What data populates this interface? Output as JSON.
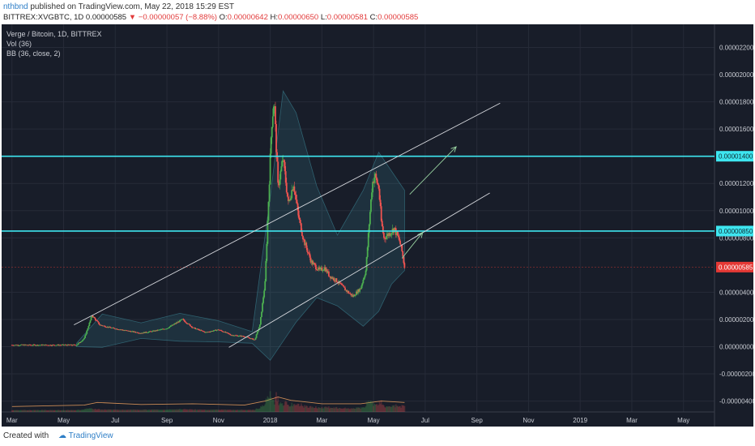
{
  "header": {
    "author": "nthbnd",
    "published_text": "published on TradingView.com, May 22, 2018 15:29 EST",
    "symbol": "BITTREX:XVGBTC, 1D",
    "last": "0.00000585",
    "change": "−0.00000057 (−8.88%)",
    "o_label": "O:",
    "o": "0.00000642",
    "h_label": "H:",
    "h": "0.00000650",
    "l_label": "L:",
    "l": "0.00000581",
    "c_label": "C:",
    "c": "0.00000585"
  },
  "legend": {
    "title": "Verge / Bitcoin, 1D, BITTREX",
    "vol": "Vol (36)",
    "bb": "BB (36, close, 2)"
  },
  "footer": {
    "created": "Created with",
    "brand": "TradingView"
  },
  "colors": {
    "background": "#181d29",
    "grid": "#262b38",
    "up": "#4caf50",
    "down": "#ef5350",
    "level": "#3ee6f0",
    "current": "#e53935",
    "trendline": "#d7d9de",
    "arrow": "#9ad4a2",
    "bb_band": "#3f8fa0",
    "volume_ma": "#c98a55"
  },
  "chart_data": {
    "type": "candlestick",
    "title": "Verge / Bitcoin, 1D, BITTREX",
    "price_axis": {
      "ticks": [
        "0.00002200",
        "0.00002000",
        "0.00001800",
        "0.00001600",
        "0.00001200",
        "0.00001000",
        "0.00000800",
        "0.00000400",
        "0.00000200",
        "0.00000000",
        "-0.00000200",
        "-0.00000400"
      ],
      "tick_values": [
        2200,
        2000,
        1800,
        1600,
        1200,
        1000,
        800,
        400,
        200,
        0,
        -200,
        -400
      ],
      "unit": "1e-8 BTC",
      "range": [
        -480,
        2370
      ]
    },
    "time_axis": {
      "labels": [
        "Mar",
        "May",
        "Jul",
        "Sep",
        "Nov",
        "2018",
        "Mar",
        "May",
        "Jul",
        "Sep",
        "Nov",
        "2019",
        "Mar",
        "May"
      ],
      "label_months": [
        0,
        2,
        4,
        6,
        8,
        10,
        12,
        14,
        16,
        18,
        20,
        22,
        24,
        26
      ],
      "origin": "Mar 2017",
      "range_months": [
        -0.4,
        27.2
      ]
    },
    "levels": [
      {
        "label": "0.00001400",
        "value": 1400
      },
      {
        "label": "0.00000850",
        "value": 850
      }
    ],
    "current_price": {
      "label": "0.00000585",
      "value": 585
    },
    "price_path": [
      [
        0.0,
        12
      ],
      [
        2.5,
        12
      ],
      [
        2.8,
        60
      ],
      [
        3.1,
        230
      ],
      [
        3.4,
        160
      ],
      [
        3.8,
        140
      ],
      [
        4.5,
        115
      ],
      [
        5.0,
        100
      ],
      [
        5.5,
        115
      ],
      [
        6.0,
        135
      ],
      [
        6.6,
        200
      ],
      [
        7.0,
        140
      ],
      [
        7.5,
        105
      ],
      [
        8.0,
        125
      ],
      [
        8.5,
        85
      ],
      [
        9.0,
        75
      ],
      [
        9.4,
        50
      ],
      [
        9.6,
        160
      ],
      [
        9.8,
        470
      ],
      [
        9.95,
        1150
      ],
      [
        10.05,
        1620
      ],
      [
        10.15,
        1820
      ],
      [
        10.3,
        1180
      ],
      [
        10.5,
        1380
      ],
      [
        10.7,
        1050
      ],
      [
        10.9,
        1200
      ],
      [
        11.1,
        950
      ],
      [
        11.3,
        780
      ],
      [
        11.6,
        620
      ],
      [
        11.9,
        560
      ],
      [
        12.1,
        580
      ],
      [
        12.3,
        520
      ],
      [
        12.6,
        480
      ],
      [
        12.9,
        420
      ],
      [
        13.2,
        370
      ],
      [
        13.5,
        430
      ],
      [
        13.7,
        560
      ],
      [
        13.85,
        950
      ],
      [
        13.95,
        1200
      ],
      [
        14.05,
        1260
      ],
      [
        14.2,
        1170
      ],
      [
        14.3,
        920
      ],
      [
        14.4,
        800
      ],
      [
        14.6,
        830
      ],
      [
        14.8,
        870
      ],
      [
        15.0,
        780
      ],
      [
        15.1,
        700
      ],
      [
        15.2,
        585
      ]
    ],
    "bollinger": {
      "upper": [
        [
          2.5,
          25
        ],
        [
          3.5,
          240
        ],
        [
          5.0,
          175
        ],
        [
          6.5,
          245
        ],
        [
          8.0,
          190
        ],
        [
          9.3,
          110
        ],
        [
          10.0,
          1100
        ],
        [
          10.5,
          1880
        ],
        [
          11.0,
          1720
        ],
        [
          11.8,
          1180
        ],
        [
          12.6,
          820
        ],
        [
          13.6,
          1150
        ],
        [
          14.2,
          1430
        ],
        [
          14.7,
          1290
        ],
        [
          15.2,
          1150
        ]
      ],
      "lower": [
        [
          2.5,
          0
        ],
        [
          3.5,
          -5
        ],
        [
          5.0,
          60
        ],
        [
          6.5,
          40
        ],
        [
          8.0,
          35
        ],
        [
          9.3,
          25
        ],
        [
          10.0,
          -100
        ],
        [
          10.5,
          40
        ],
        [
          11.0,
          180
        ],
        [
          11.8,
          360
        ],
        [
          12.6,
          300
        ],
        [
          13.6,
          150
        ],
        [
          14.2,
          260
        ],
        [
          14.7,
          460
        ],
        [
          15.2,
          560
        ]
      ]
    },
    "volume_ma": [
      [
        0,
        -440
      ],
      [
        2.8,
        -430
      ],
      [
        3.3,
        -410
      ],
      [
        5,
        -425
      ],
      [
        7,
        -420
      ],
      [
        9,
        -430
      ],
      [
        9.8,
        -400
      ],
      [
        10.3,
        -370
      ],
      [
        10.8,
        -395
      ],
      [
        12,
        -420
      ],
      [
        13.5,
        -420
      ],
      [
        14.3,
        -400
      ],
      [
        15.2,
        -410
      ]
    ],
    "trendlines": [
      {
        "from": [
          2.4,
          160
        ],
        "to": [
          18.9,
          1790
        ]
      },
      {
        "from": [
          8.4,
          -5
        ],
        "to": [
          18.5,
          1130
        ]
      }
    ],
    "arrows": [
      {
        "from": [
          15.4,
          1120
        ],
        "to": [
          17.2,
          1470
        ]
      },
      {
        "from": [
          15.1,
          650
        ],
        "to": [
          15.9,
          840
        ]
      }
    ]
  }
}
